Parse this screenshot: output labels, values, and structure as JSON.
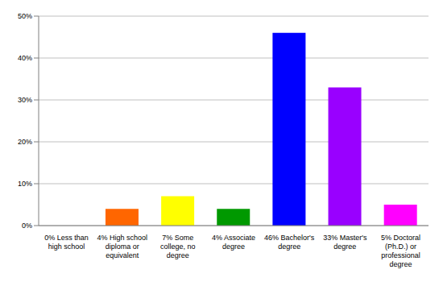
{
  "chart_data": {
    "type": "bar",
    "categories": [
      "0% Less than high school",
      "4% High school diploma or equivalent",
      "7% Some college, no degree",
      "4% Associate degree",
      "46% Bachelor's degree",
      "33% Master's degree",
      "5% Doctoral (Ph.D.) or professional degree"
    ],
    "values": [
      0,
      4,
      7,
      4,
      46,
      33,
      5
    ],
    "colors": [
      "#ff0000",
      "#ff6600",
      "#ffff00",
      "#009900",
      "#0000ff",
      "#9900ff",
      "#ff00ff"
    ],
    "ylim": [
      0,
      50
    ],
    "yticks": [
      {
        "value": 0,
        "label": "0%"
      },
      {
        "value": 10,
        "label": "10%"
      },
      {
        "value": 20,
        "label": "20%"
      },
      {
        "value": 30,
        "label": "30%"
      },
      {
        "value": 40,
        "label": "40%"
      },
      {
        "value": 50,
        "label": "50%"
      }
    ],
    "grid": true
  }
}
